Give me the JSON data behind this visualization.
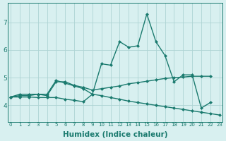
{
  "x": [
    0,
    1,
    2,
    3,
    4,
    5,
    6,
    7,
    8,
    9,
    10,
    11,
    12,
    13,
    14,
    15,
    16,
    17,
    18,
    19,
    20,
    21,
    22,
    23
  ],
  "line1": [
    4.3,
    4.4,
    4.4,
    4.4,
    4.4,
    4.9,
    4.8,
    4.7,
    4.6,
    4.4,
    5.5,
    5.45,
    6.3,
    6.1,
    6.15,
    7.3,
    6.3,
    5.8,
    4.85,
    5.1,
    5.1,
    3.9,
    4.1,
    null
  ],
  "line2": [
    4.3,
    4.35,
    4.35,
    4.4,
    4.35,
    4.85,
    4.85,
    4.72,
    4.65,
    4.55,
    4.6,
    4.65,
    4.7,
    4.78,
    4.82,
    4.87,
    4.92,
    4.97,
    5.0,
    5.02,
    5.05,
    5.05,
    5.05,
    null
  ],
  "line3": [
    4.3,
    4.3,
    4.3,
    4.28,
    4.28,
    4.28,
    4.22,
    4.18,
    4.13,
    4.4,
    4.35,
    4.28,
    4.22,
    4.15,
    4.1,
    4.05,
    4.0,
    3.95,
    3.9,
    3.85,
    3.8,
    3.75,
    3.7,
    3.65
  ],
  "color": "#1a7a6e",
  "bg_color": "#d8f0f0",
  "grid_color": "#aed4d4",
  "xlabel": "Humidex (Indice chaleur)",
  "xlabel_fontsize": 7.5,
  "yticks": [
    4,
    5,
    6,
    7
  ],
  "xticks": [
    0,
    1,
    2,
    3,
    4,
    5,
    6,
    7,
    8,
    9,
    10,
    11,
    12,
    13,
    14,
    15,
    16,
    17,
    18,
    19,
    20,
    21,
    22,
    23
  ],
  "xlim": [
    -0.3,
    23.3
  ],
  "ylim": [
    3.4,
    7.7
  ],
  "marker": "D",
  "markersize": 2.0,
  "linewidth": 1.0
}
